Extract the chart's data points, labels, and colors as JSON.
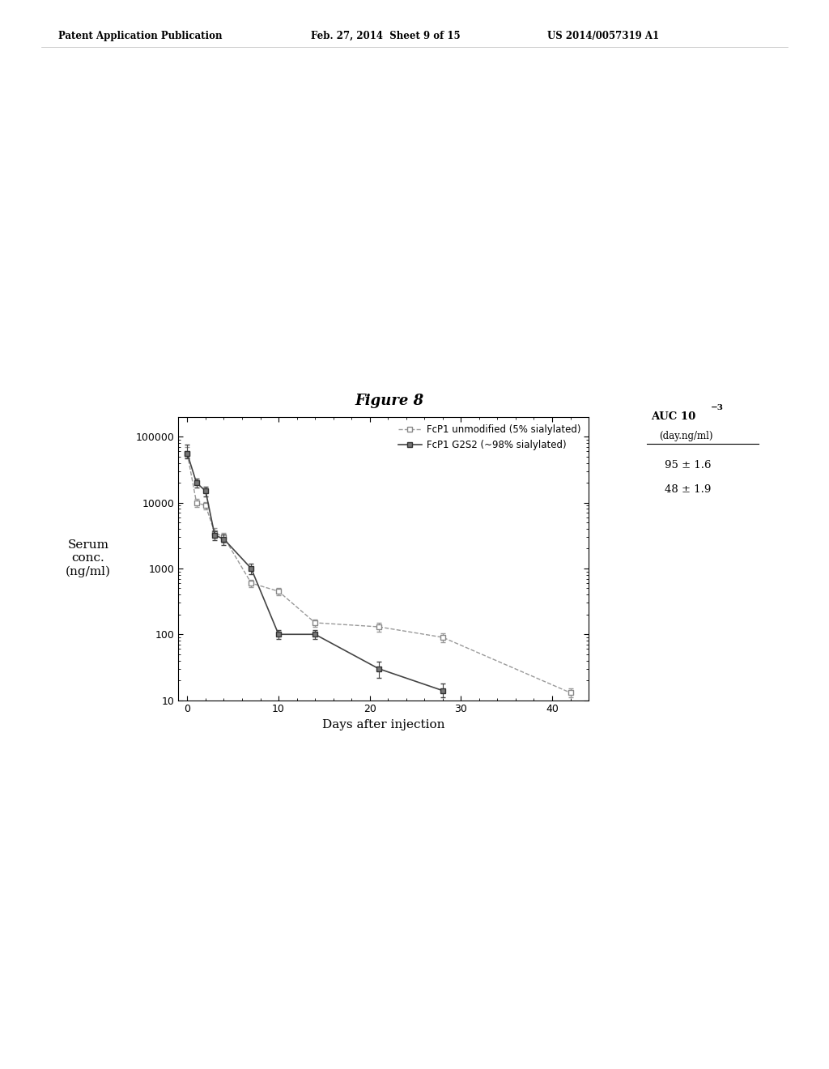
{
  "title": "Figure 8",
  "xlabel": "Days after injection",
  "ylabel": "Serum\nconc.\n(ng/ml)",
  "series1_label": "FcP1 unmodified (5% sialylated)",
  "series1_auc": "95 ± 1.6",
  "series2_label": "FcP1 G2S2 (~98% sialylated)",
  "series2_auc": "48 ± 1.9",
  "series1_x": [
    0,
    1,
    2,
    3,
    4,
    7,
    10,
    14,
    21,
    28,
    42
  ],
  "series1_y": [
    55000,
    10000,
    9000,
    3500,
    3000,
    600,
    450,
    150,
    130,
    90,
    13
  ],
  "series1_yerr_lo": [
    7000,
    1500,
    1200,
    600,
    500,
    80,
    60,
    20,
    20,
    15,
    2
  ],
  "series1_yerr_hi": [
    15000,
    1500,
    1200,
    600,
    500,
    80,
    60,
    20,
    20,
    15,
    2
  ],
  "series2_x": [
    0,
    1,
    2,
    3,
    4,
    7,
    10,
    14,
    21,
    28
  ],
  "series2_y": [
    55000,
    20000,
    15000,
    3200,
    2800,
    1000,
    100,
    100,
    30,
    14
  ],
  "series2_yerr_lo": [
    8000,
    3000,
    2500,
    500,
    500,
    180,
    15,
    15,
    8,
    3
  ],
  "series2_yerr_hi": [
    20000,
    3000,
    2500,
    500,
    500,
    180,
    15,
    15,
    8,
    4
  ],
  "ylim_log": [
    10,
    200000
  ],
  "xlim": [
    -1,
    44
  ],
  "background_color": "#ffffff",
  "line_color1": "#999999",
  "line_color2": "#444444",
  "marker_face1": "#ffffff",
  "marker_face2": "#777777",
  "marker_edge1": "#888888",
  "marker_edge2": "#333333"
}
